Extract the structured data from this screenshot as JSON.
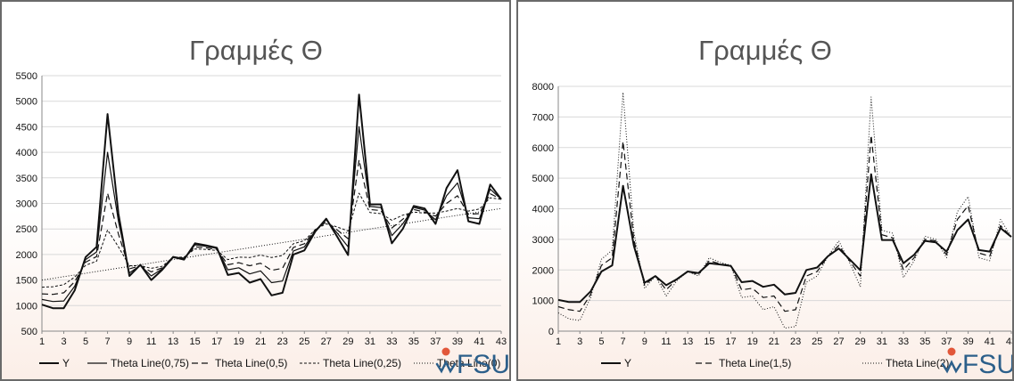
{
  "chart_data": [
    {
      "type": "line",
      "title": "Γραμμές Θ",
      "xlabel": "",
      "ylabel": "",
      "ylim": [
        500,
        5500
      ],
      "yticks": [
        500,
        1000,
        1500,
        2000,
        2500,
        3000,
        3500,
        4000,
        4500,
        5000,
        5500
      ],
      "xlim": [
        1,
        43
      ],
      "xticks": [
        1,
        3,
        5,
        7,
        9,
        11,
        13,
        15,
        17,
        19,
        21,
        23,
        25,
        27,
        29,
        31,
        33,
        35,
        37,
        39,
        41,
        43
      ],
      "grid": true,
      "legend": "bottom",
      "x": [
        1,
        2,
        3,
        4,
        5,
        6,
        7,
        8,
        9,
        10,
        11,
        12,
        13,
        14,
        15,
        16,
        17,
        18,
        19,
        20,
        21,
        22,
        23,
        24,
        25,
        26,
        27,
        28,
        29,
        30,
        31,
        32,
        33,
        34,
        35,
        36,
        37,
        38,
        39,
        40,
        41,
        42,
        43
      ],
      "series": [
        {
          "name": "Y",
          "style": "solid-bold",
          "values": [
            1020,
            950,
            950,
            1300,
            1950,
            2150,
            4750,
            2800,
            1580,
            1800,
            1500,
            1700,
            1950,
            1900,
            2220,
            2180,
            2130,
            1600,
            1640,
            1450,
            1520,
            1200,
            1250,
            2000,
            2080,
            2450,
            2700,
            2350,
            1990,
            5130,
            2980,
            2980,
            2220,
            2500,
            2950,
            2900,
            2600,
            3300,
            3650,
            2650,
            2600,
            3370,
            3080
          ]
        },
        {
          "name": "Theta Line(0,75)",
          "style": "solid",
          "values": [
            1120,
            1080,
            1090,
            1380,
            1900,
            2050,
            4000,
            2650,
            1640,
            1790,
            1580,
            1720,
            1960,
            1920,
            2190,
            2160,
            2120,
            1700,
            1740,
            1620,
            1680,
            1450,
            1480,
            2070,
            2150,
            2470,
            2680,
            2420,
            2150,
            4500,
            2940,
            2920,
            2370,
            2600,
            2920,
            2870,
            2680,
            3150,
            3400,
            2720,
            2700,
            3280,
            3080
          ]
        },
        {
          "name": "Theta Line(0,5)",
          "style": "dash",
          "values": [
            1230,
            1220,
            1250,
            1470,
            1850,
            1960,
            3200,
            2400,
            1720,
            1780,
            1660,
            1740,
            1950,
            1930,
            2150,
            2130,
            2100,
            1800,
            1840,
            1780,
            1830,
            1690,
            1730,
            2140,
            2210,
            2480,
            2640,
            2480,
            2310,
            3850,
            2880,
            2860,
            2520,
            2690,
            2880,
            2830,
            2750,
            3000,
            3150,
            2790,
            2800,
            3190,
            3080
          ]
        },
        {
          "name": "Theta Line(0,25)",
          "style": "fine-dash",
          "values": [
            1360,
            1370,
            1410,
            1560,
            1790,
            1870,
            2480,
            2150,
            1780,
            1780,
            1730,
            1770,
            1940,
            1950,
            2110,
            2100,
            2080,
            1900,
            1950,
            1940,
            1990,
            1940,
            1980,
            2210,
            2270,
            2490,
            2600,
            2540,
            2460,
            3200,
            2820,
            2800,
            2670,
            2770,
            2830,
            2810,
            2810,
            2850,
            2900,
            2850,
            2890,
            3110,
            3080
          ]
        },
        {
          "name": "Theta Line(0)",
          "style": "dotted",
          "values": [
            1500,
            1533,
            1567,
            1600,
            1633,
            1667,
            1700,
            1733,
            1767,
            1800,
            1833,
            1867,
            1900,
            1933,
            1967,
            2000,
            2033,
            2067,
            2100,
            2133,
            2167,
            2200,
            2233,
            2267,
            2300,
            2333,
            2367,
            2400,
            2433,
            2467,
            2500,
            2533,
            2567,
            2600,
            2633,
            2667,
            2700,
            2733,
            2767,
            2800,
            2833,
            2867,
            2900
          ]
        }
      ]
    },
    {
      "type": "line",
      "title": "Γραμμές Θ",
      "xlabel": "",
      "ylabel": "",
      "ylim": [
        0,
        8000
      ],
      "yticks": [
        0,
        1000,
        2000,
        3000,
        4000,
        5000,
        6000,
        7000,
        8000
      ],
      "xlim": [
        1,
        43
      ],
      "xticks": [
        1,
        3,
        5,
        7,
        9,
        11,
        13,
        15,
        17,
        19,
        21,
        23,
        25,
        27,
        29,
        31,
        33,
        35,
        37,
        39,
        41,
        43
      ],
      "xtick_labels": [
        "1",
        "3",
        "5",
        "7",
        "9",
        "11",
        "13",
        "15",
        "17",
        "19",
        "21",
        "23",
        "25",
        "27",
        "29",
        "31",
        "33",
        "35",
        "37",
        "39",
        "41",
        "43"
      ],
      "grid": true,
      "legend": "bottom",
      "x": [
        1,
        2,
        3,
        4,
        5,
        6,
        7,
        8,
        9,
        10,
        11,
        12,
        13,
        14,
        15,
        16,
        17,
        18,
        19,
        20,
        21,
        22,
        23,
        24,
        25,
        26,
        27,
        28,
        29,
        30,
        31,
        32,
        33,
        34,
        35,
        36,
        37,
        38,
        39,
        40,
        41,
        42,
        43
      ],
      "series": [
        {
          "name": "Y",
          "style": "solid-bold",
          "values": [
            1020,
            950,
            950,
            1300,
            1950,
            2150,
            4750,
            2800,
            1580,
            1800,
            1500,
            1700,
            1950,
            1900,
            2220,
            2180,
            2130,
            1600,
            1640,
            1450,
            1520,
            1200,
            1250,
            2000,
            2080,
            2450,
            2700,
            2350,
            1990,
            5130,
            2980,
            2980,
            2220,
            2500,
            2950,
            2900,
            2600,
            3300,
            3650,
            2650,
            2600,
            3370,
            3080
          ]
        },
        {
          "name": "Theta Line(1,5)",
          "style": "dash",
          "values": [
            800,
            700,
            650,
            1200,
            2150,
            2400,
            6200,
            3000,
            1500,
            1800,
            1350,
            1700,
            1950,
            1850,
            2300,
            2200,
            2150,
            1350,
            1400,
            1100,
            1150,
            650,
            700,
            1800,
            1950,
            2450,
            2800,
            2300,
            1800,
            6400,
            3150,
            3050,
            2000,
            2400,
            3000,
            2950,
            2500,
            3650,
            4100,
            2550,
            2450,
            3450,
            3080
          ]
        },
        {
          "name": "Theta Line(2)",
          "style": "dotted",
          "values": [
            600,
            400,
            350,
            1100,
            2350,
            2650,
            7800,
            3250,
            1400,
            1800,
            1150,
            1650,
            1950,
            1800,
            2400,
            2250,
            2150,
            1100,
            1150,
            700,
            800,
            100,
            150,
            1600,
            1800,
            2450,
            2950,
            2250,
            1450,
            7650,
            3300,
            3200,
            1750,
            2300,
            3100,
            3000,
            2400,
            3900,
            4400,
            2400,
            2300,
            3650,
            3080
          ]
        }
      ]
    }
  ],
  "logo": {
    "text": "FSU",
    "accent_color": "#e2573a",
    "text_color": "#2c5f8a",
    "icon": "fsu-leaf-icon"
  },
  "colors": {
    "line": "#111111",
    "grid": "#d9d9d9",
    "border": "#6a6a6a"
  }
}
